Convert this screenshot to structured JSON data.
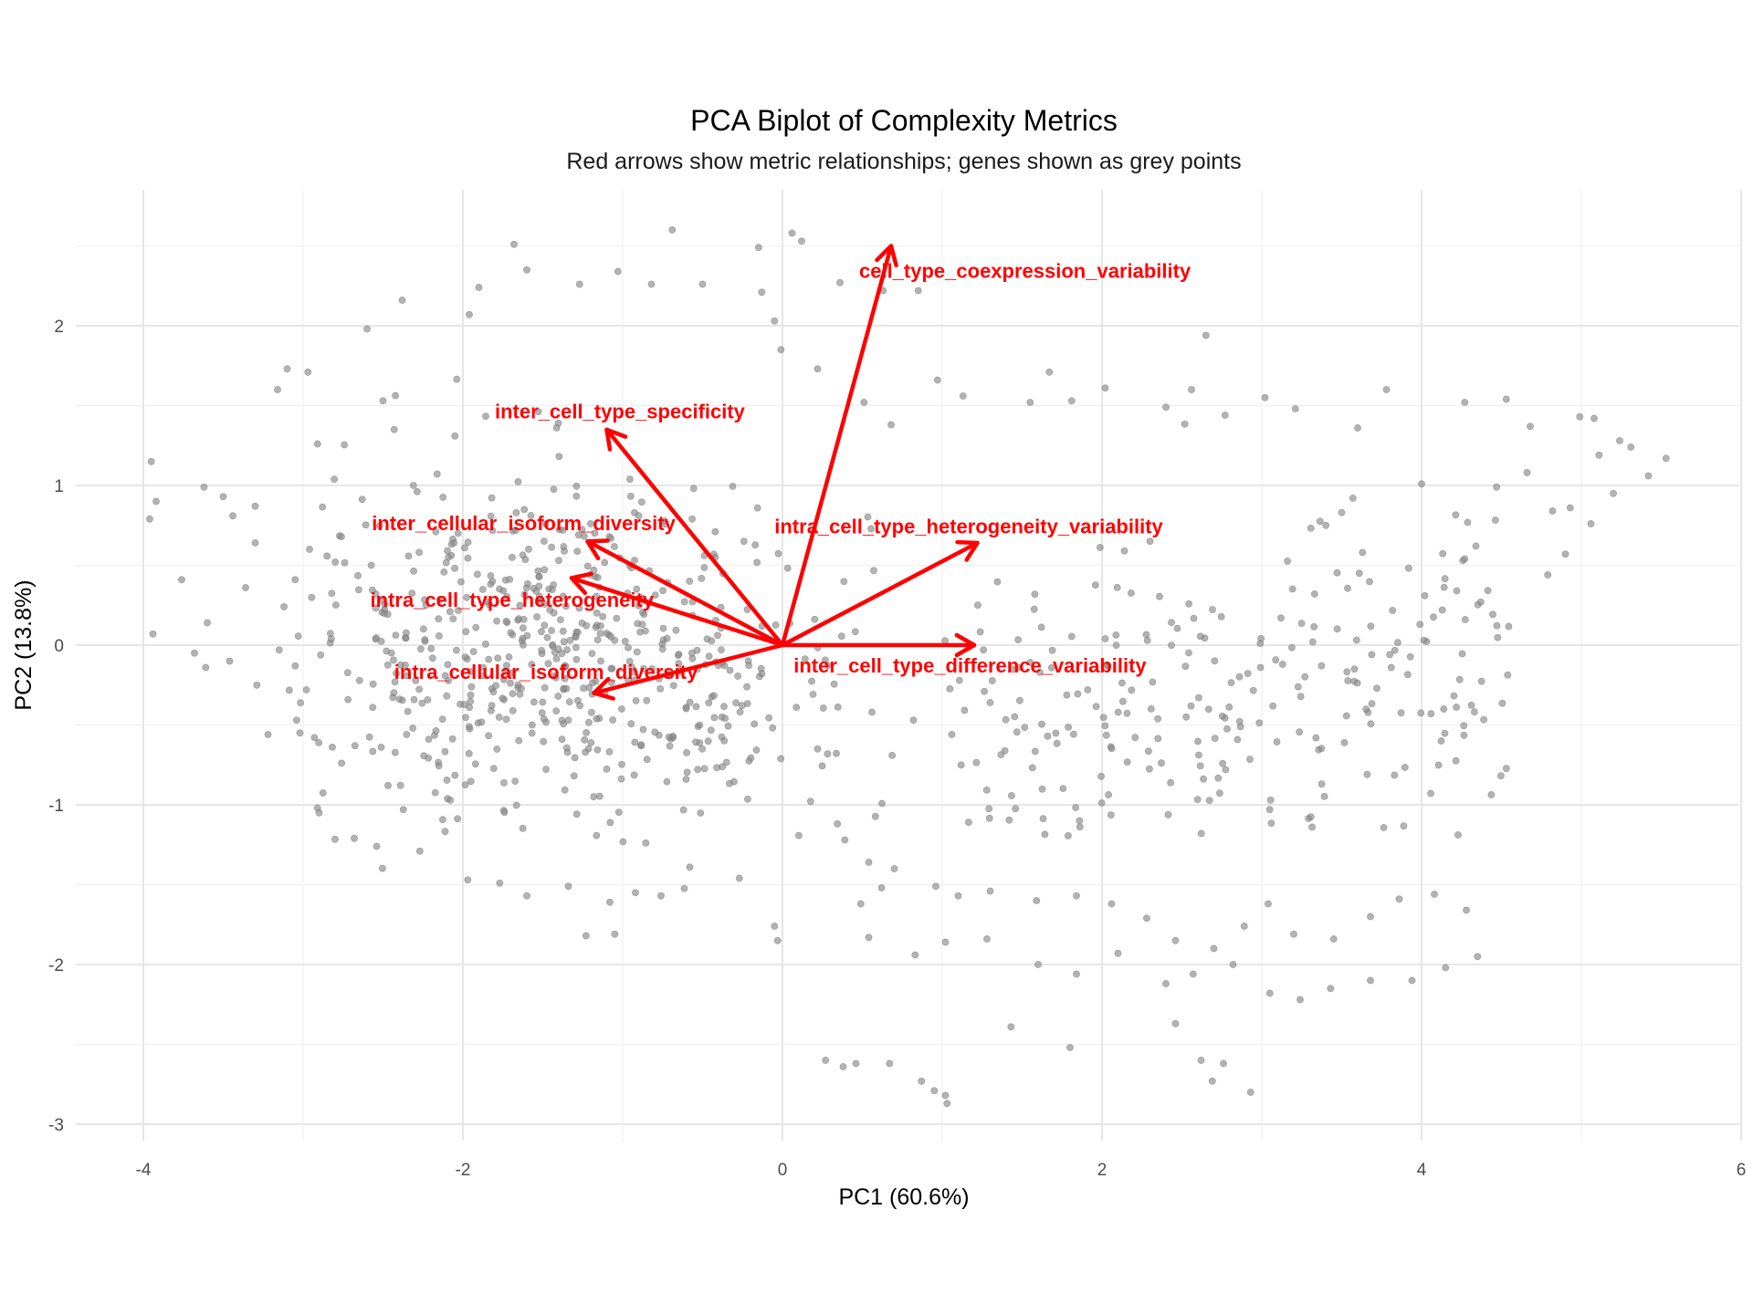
{
  "chart_data": {
    "type": "scatter",
    "title": "PCA Biplot of Complexity Metrics",
    "subtitle": "Red arrows show metric relationships; genes shown as grey points",
    "xlabel": "PC1 (60.6%)",
    "ylabel": "PC2 (13.8%)",
    "xlim": [
      -4.4,
      6.0
    ],
    "ylim": [
      -3.1,
      2.6
    ],
    "x_ticks": [
      -4,
      -2,
      0,
      2,
      4,
      6
    ],
    "y_ticks": [
      -3,
      -2,
      -1,
      0,
      1,
      2
    ],
    "x_tick_labels": [
      "-4",
      "-2",
      "0",
      "2",
      "4",
      "6"
    ],
    "y_tick_labels": [
      "-3",
      "-2",
      "-1",
      "0",
      "1",
      "2"
    ],
    "grid": true,
    "point_color": "#8a8a8a",
    "arrow_color": "#ff0000",
    "loadings": [
      {
        "name": "cell_type_coexpression_variability",
        "x": 0.68,
        "y": 2.5,
        "label_x": 0.48,
        "label_y": 2.34
      },
      {
        "name": "inter_cell_type_specificity",
        "x": -1.1,
        "y": 1.35,
        "label_x": -1.8,
        "label_y": 1.46
      },
      {
        "name": "inter_cellular_isoform_diversity",
        "x": -1.22,
        "y": 0.65,
        "label_x": -2.57,
        "label_y": 0.76
      },
      {
        "name": "intra_cell_type_heterogeneity_variability",
        "x": 1.22,
        "y": 0.64,
        "label_x": -0.05,
        "label_y": 0.74
      },
      {
        "name": "intra_cell_type_heterogeneity",
        "x": -1.32,
        "y": 0.42,
        "label_x": -2.58,
        "label_y": 0.28
      },
      {
        "name": "inter_cell_type_difference_variability",
        "x": 1.2,
        "y": 0.0,
        "label_x": 0.07,
        "label_y": -0.13
      },
      {
        "name": "intra_cellular_isoform_diversity",
        "x": -1.18,
        "y": -0.3,
        "label_x": -2.43,
        "label_y": -0.17
      }
    ],
    "points": [
      {
        "x": -3.95,
        "y": 1.15
      },
      {
        "x": -3.92,
        "y": 0.9
      },
      {
        "x": -3.96,
        "y": 0.79
      },
      {
        "x": -3.94,
        "y": 0.07
      },
      {
        "x": -3.76,
        "y": 0.41
      },
      {
        "x": -3.62,
        "y": 0.99
      },
      {
        "x": -3.5,
        "y": 0.93
      },
      {
        "x": -3.44,
        "y": 0.81
      },
      {
        "x": -3.6,
        "y": 0.14
      },
      {
        "x": -3.68,
        "y": -0.05
      },
      {
        "x": -3.61,
        "y": -0.14
      },
      {
        "x": -3.46,
        "y": -0.1
      },
      {
        "x": -3.3,
        "y": 0.87
      },
      {
        "x": -3.3,
        "y": 0.64
      },
      {
        "x": -3.36,
        "y": 0.36
      },
      {
        "x": -3.1,
        "y": 1.73
      },
      {
        "x": -3.16,
        "y": 1.6
      },
      {
        "x": -2.97,
        "y": 1.71
      },
      {
        "x": -2.91,
        "y": 1.26
      },
      {
        "x": -2.96,
        "y": 0.6
      },
      {
        "x": -3.05,
        "y": 0.41
      },
      {
        "x": -3.12,
        "y": 0.24
      },
      {
        "x": -3.15,
        "y": -0.03
      },
      {
        "x": -3.05,
        "y": -0.13
      },
      {
        "x": -3.29,
        "y": -0.25
      },
      {
        "x": -3.22,
        "y": -0.56
      },
      {
        "x": -3.02,
        "y": -0.55
      },
      {
        "x": -2.98,
        "y": -0.28
      },
      {
        "x": -2.91,
        "y": -1.02
      },
      {
        "x": -2.6,
        "y": 1.98
      },
      {
        "x": -2.5,
        "y": 1.53
      },
      {
        "x": -2.38,
        "y": 2.16
      },
      {
        "x": -2.43,
        "y": 1.35
      },
      {
        "x": -2.31,
        "y": 1.0
      },
      {
        "x": -2.17,
        "y": 0.71
      },
      {
        "x": -2.05,
        "y": 1.31
      },
      {
        "x": -1.9,
        "y": 2.24
      },
      {
        "x": -1.96,
        "y": 2.07
      },
      {
        "x": -1.68,
        "y": 2.51
      },
      {
        "x": -1.6,
        "y": 2.35
      },
      {
        "x": -1.27,
        "y": 2.26
      },
      {
        "x": -1.03,
        "y": 2.34
      },
      {
        "x": -0.82,
        "y": 2.26
      },
      {
        "x": -0.69,
        "y": 2.6
      },
      {
        "x": -0.5,
        "y": 2.26
      },
      {
        "x": -0.15,
        "y": 2.49
      },
      {
        "x": 0.06,
        "y": 2.58
      },
      {
        "x": 0.12,
        "y": 2.53
      },
      {
        "x": -0.13,
        "y": 2.21
      },
      {
        "x": 0.36,
        "y": 2.27
      },
      {
        "x": 0.85,
        "y": 2.22
      },
      {
        "x": -0.05,
        "y": 2.03
      },
      {
        "x": -0.01,
        "y": 1.85
      },
      {
        "x": 0.63,
        "y": 2.22
      },
      {
        "x": 0.22,
        "y": 1.73
      },
      {
        "x": 0.51,
        "y": 1.52
      },
      {
        "x": 0.68,
        "y": 1.38
      },
      {
        "x": 0.97,
        "y": 1.66
      },
      {
        "x": 1.13,
        "y": 1.56
      },
      {
        "x": 1.55,
        "y": 1.52
      },
      {
        "x": 1.67,
        "y": 1.71
      },
      {
        "x": 1.81,
        "y": 1.53
      },
      {
        "x": 2.02,
        "y": 1.61
      },
      {
        "x": 2.4,
        "y": 1.49
      },
      {
        "x": 2.56,
        "y": 1.6
      },
      {
        "x": 2.65,
        "y": 1.94
      },
      {
        "x": 2.77,
        "y": 1.44
      },
      {
        "x": 3.02,
        "y": 1.55
      },
      {
        "x": 3.21,
        "y": 1.48
      },
      {
        "x": 3.6,
        "y": 1.36
      },
      {
        "x": 3.78,
        "y": 1.6
      },
      {
        "x": 4.27,
        "y": 1.52
      },
      {
        "x": 4.53,
        "y": 1.54
      },
      {
        "x": 4.68,
        "y": 1.37
      },
      {
        "x": 4.99,
        "y": 1.43
      },
      {
        "x": 5.08,
        "y": 1.42
      },
      {
        "x": 5.11,
        "y": 1.19
      },
      {
        "x": 5.24,
        "y": 1.28
      },
      {
        "x": 5.31,
        "y": 1.24
      },
      {
        "x": 5.42,
        "y": 1.06
      },
      {
        "x": 5.53,
        "y": 1.17
      },
      {
        "x": 5.2,
        "y": 0.95
      },
      {
        "x": 5.06,
        "y": 0.76
      },
      {
        "x": 4.93,
        "y": 0.86
      },
      {
        "x": 4.82,
        "y": 0.84
      },
      {
        "x": 4.66,
        "y": 1.08
      },
      {
        "x": 4.47,
        "y": 0.99
      },
      {
        "x": 4.34,
        "y": 0.62
      },
      {
        "x": 4.0,
        "y": 1.01
      },
      {
        "x": 4.37,
        "y": 0.27
      },
      {
        "x": 4.22,
        "y": 0.34
      },
      {
        "x": 4.13,
        "y": 0.22
      },
      {
        "x": 4.79,
        "y": 0.44
      },
      {
        "x": 4.9,
        "y": 0.57
      },
      {
        "x": 3.57,
        "y": 0.92
      },
      {
        "x": 3.5,
        "y": 0.83
      },
      {
        "x": 3.63,
        "y": 0.58
      },
      {
        "x": 3.33,
        "y": 0.32
      },
      {
        "x": 3.12,
        "y": 0.17
      },
      {
        "x": 2.99,
        "y": 0.01
      },
      {
        "x": 3.13,
        "y": -0.12
      },
      {
        "x": 3.58,
        "y": -0.15
      },
      {
        "x": 3.72,
        "y": -0.27
      },
      {
        "x": 3.81,
        "y": -0.14
      },
      {
        "x": 4.02,
        "y": 0.31
      },
      {
        "x": 2.3,
        "y": 0.65
      },
      {
        "x": 2.14,
        "y": 0.59
      },
      {
        "x": 2.02,
        "y": 0.04
      },
      {
        "x": 1.91,
        "y": -0.28
      },
      {
        "x": 1.61,
        "y": -0.17
      },
      {
        "x": 1.3,
        "y": -0.36
      },
      {
        "x": 1.06,
        "y": -0.56
      },
      {
        "x": 0.82,
        "y": -0.47
      },
      {
        "x": 0.56,
        "y": -0.42
      },
      {
        "x": 0.22,
        "y": -0.65
      },
      {
        "x": 0.39,
        "y": -1.22
      },
      {
        "x": 0.54,
        "y": -1.36
      },
      {
        "x": 0.7,
        "y": -1.4
      },
      {
        "x": 0.96,
        "y": -1.51
      },
      {
        "x": 1.1,
        "y": -1.57
      },
      {
        "x": 1.3,
        "y": -1.54
      },
      {
        "x": 1.59,
        "y": -1.6
      },
      {
        "x": 1.84,
        "y": -1.57
      },
      {
        "x": 2.06,
        "y": -1.62
      },
      {
        "x": 2.28,
        "y": -1.71
      },
      {
        "x": 2.46,
        "y": -1.85
      },
      {
        "x": 2.7,
        "y": -1.9
      },
      {
        "x": 2.89,
        "y": -1.76
      },
      {
        "x": 3.04,
        "y": -1.62
      },
      {
        "x": 3.2,
        "y": -1.81
      },
      {
        "x": 3.45,
        "y": -1.84
      },
      {
        "x": 3.68,
        "y": -1.7
      },
      {
        "x": 3.86,
        "y": -1.59
      },
      {
        "x": 4.08,
        "y": -1.56
      },
      {
        "x": 4.28,
        "y": -1.66
      },
      {
        "x": 4.35,
        "y": -1.95
      },
      {
        "x": 4.15,
        "y": -2.02
      },
      {
        "x": 3.94,
        "y": -2.1
      },
      {
        "x": 3.68,
        "y": -2.1
      },
      {
        "x": 3.43,
        "y": -2.15
      },
      {
        "x": 3.24,
        "y": -2.22
      },
      {
        "x": 3.05,
        "y": -2.18
      },
      {
        "x": 2.82,
        "y": -2.0
      },
      {
        "x": 2.57,
        "y": -2.06
      },
      {
        "x": 2.4,
        "y": -2.12
      },
      {
        "x": 2.1,
        "y": -1.93
      },
      {
        "x": 1.84,
        "y": -2.06
      },
      {
        "x": 1.6,
        "y": -2.0
      },
      {
        "x": 1.28,
        "y": -1.84
      },
      {
        "x": 1.02,
        "y": -1.86
      },
      {
        "x": 0.83,
        "y": -1.94
      },
      {
        "x": 0.54,
        "y": -1.83
      },
      {
        "x": 0.27,
        "y": -2.6
      },
      {
        "x": 0.38,
        "y": -2.64
      },
      {
        "x": 0.46,
        "y": -2.62
      },
      {
        "x": 0.67,
        "y": -2.62
      },
      {
        "x": 0.87,
        "y": -2.73
      },
      {
        "x": 0.95,
        "y": -2.79
      },
      {
        "x": 1.02,
        "y": -2.82
      },
      {
        "x": 1.03,
        "y": -2.87
      },
      {
        "x": 1.43,
        "y": -2.39
      },
      {
        "x": 1.8,
        "y": -2.52
      },
      {
        "x": 2.46,
        "y": -2.37
      },
      {
        "x": 2.62,
        "y": -2.6
      },
      {
        "x": 2.76,
        "y": -2.62
      },
      {
        "x": 2.93,
        "y": -2.8
      },
      {
        "x": 2.69,
        "y": -2.73
      },
      {
        "x": -1.77,
        "y": -1.49
      },
      {
        "x": -1.97,
        "y": -1.47
      },
      {
        "x": -2.27,
        "y": -1.29
      },
      {
        "x": -2.54,
        "y": -1.26
      },
      {
        "x": -2.68,
        "y": -1.21
      },
      {
        "x": -2.9,
        "y": -1.05
      },
      {
        "x": -1.6,
        "y": -1.57
      },
      {
        "x": -1.34,
        "y": -1.51
      },
      {
        "x": -1.08,
        "y": -1.61
      },
      {
        "x": -0.92,
        "y": -1.55
      },
      {
        "x": -0.76,
        "y": -1.57
      },
      {
        "x": -0.58,
        "y": -1.39
      },
      {
        "x": -0.27,
        "y": -1.46
      },
      {
        "x": -1.05,
        "y": -1.81
      },
      {
        "x": -1.23,
        "y": -1.82
      },
      {
        "x": -0.05,
        "y": -1.76
      },
      {
        "x": -0.03,
        "y": -1.85
      },
      {
        "x": 0.49,
        "y": -1.62
      },
      {
        "x": 0.62,
        "y": -1.52
      }
    ]
  }
}
